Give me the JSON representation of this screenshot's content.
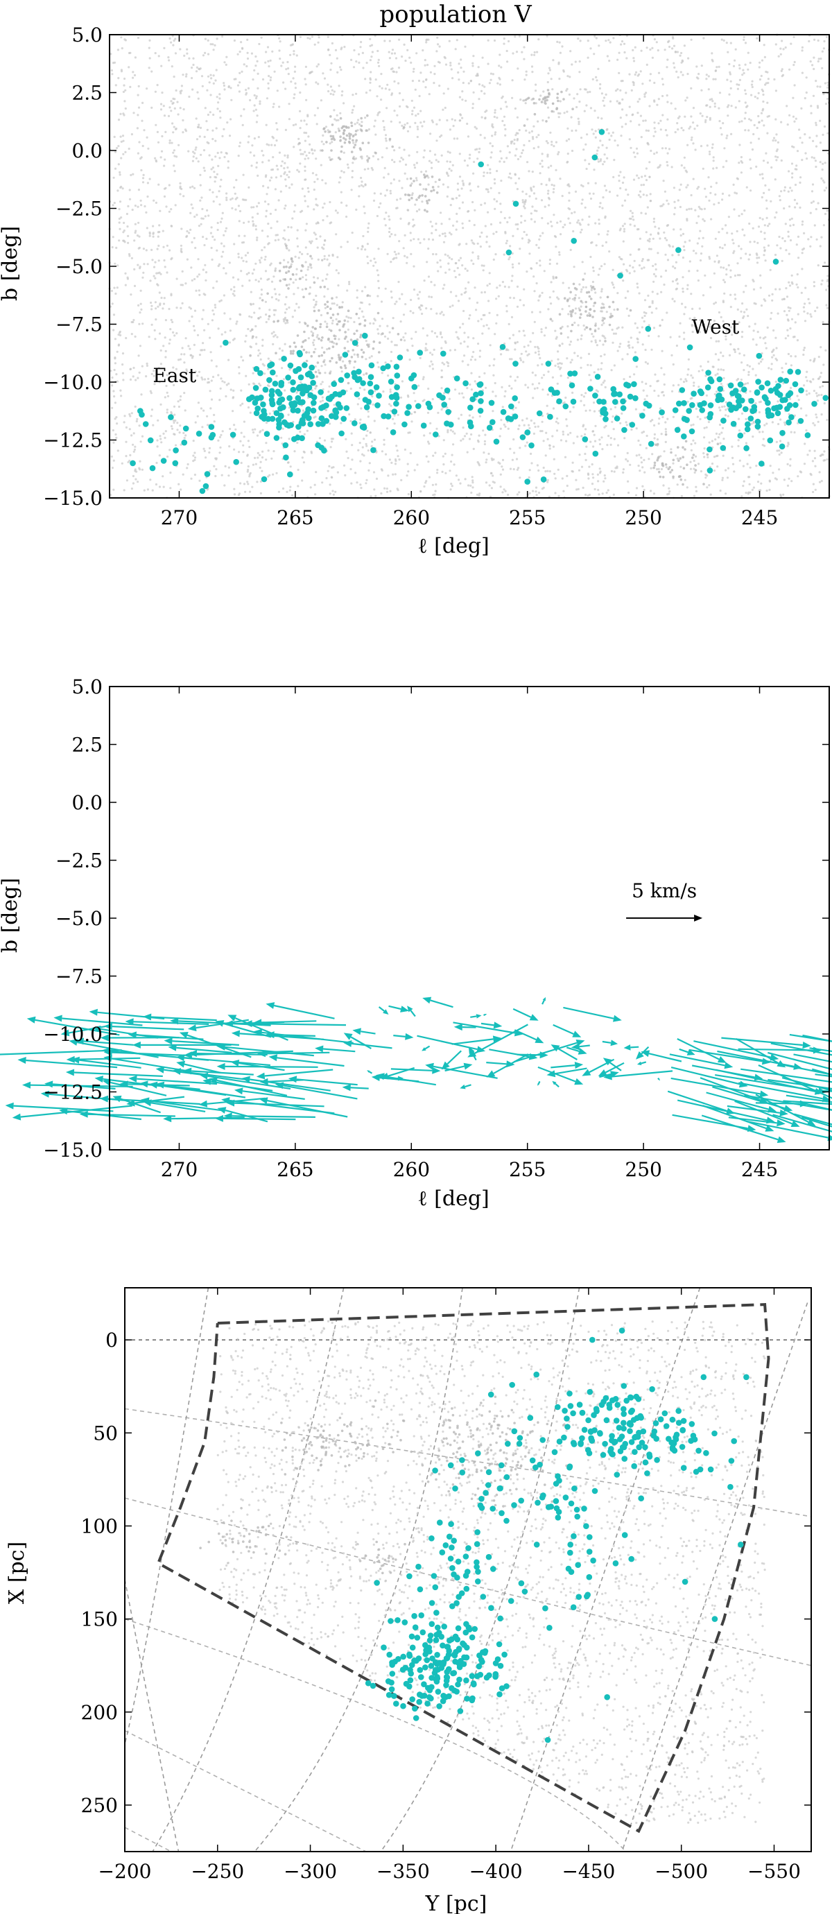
{
  "colors": {
    "member": "#17bebb",
    "background_points": "#c8c8c8",
    "grid": "#9a9a9a",
    "boundary": "#404040",
    "axis": "#000000"
  },
  "chart_data": [
    {
      "type": "scatter",
      "title": "population V",
      "xlabel": "ℓ [deg]",
      "ylabel": "b [deg]",
      "xlim": [
        273,
        242
      ],
      "ylim": [
        -15,
        5
      ],
      "xticks": [
        270,
        265,
        260,
        255,
        250,
        245
      ],
      "yticks": [
        5.0,
        2.5,
        0.0,
        -2.5,
        -5.0,
        -7.5,
        -10.0,
        -12.5,
        -15.0
      ],
      "xtick_labels": [
        "270",
        "265",
        "260",
        "255",
        "250",
        "245"
      ],
      "ytick_labels": [
        "5.0",
        "2.5",
        "0.0",
        "−2.5",
        "−5.0",
        "−7.5",
        "−10.0",
        "−12.5",
        "−15.0"
      ],
      "annotations": [
        {
          "text": "East",
          "x": 270.2,
          "y": -10.0
        },
        {
          "text": "West",
          "x": 246.9,
          "y": -7.9
        }
      ],
      "background_clumps": [
        {
          "l": 262.8,
          "b": 0.6,
          "spread_l": 0.9,
          "spread_b": 0.5,
          "n": 70
        },
        {
          "l": 263.5,
          "b": -8.2,
          "spread_l": 1.4,
          "spread_b": 0.9,
          "n": 140
        },
        {
          "l": 252.3,
          "b": -6.9,
          "spread_l": 0.8,
          "spread_b": 0.5,
          "n": 60
        },
        {
          "l": 254.3,
          "b": 2.1,
          "spread_l": 0.5,
          "spread_b": 0.3,
          "n": 30
        },
        {
          "l": 248.6,
          "b": -13.5,
          "spread_l": 0.6,
          "spread_b": 0.5,
          "n": 45
        },
        {
          "l": 259.5,
          "b": -1.9,
          "spread_l": 0.5,
          "spread_b": 0.4,
          "n": 30
        },
        {
          "l": 265.2,
          "b": -5.3,
          "spread_l": 0.5,
          "spread_b": 0.4,
          "n": 25
        }
      ],
      "background_uniform_count": 5200,
      "member_groups": [
        {
          "name": "",
          "l": 265.0,
          "b": -10.9,
          "spread_l": 1.1,
          "spread_b": 0.9,
          "n": 130
        },
        {
          "l": 261.0,
          "b": -10.6,
          "spread_l": 1.6,
          "spread_b": 0.9,
          "n": 50
        },
        {
          "l": 256.5,
          "b": -11.0,
          "spread_l": 1.8,
          "spread_b": 0.9,
          "n": 45
        },
        {
          "l": 251.5,
          "b": -10.8,
          "spread_l": 1.3,
          "spread_b": 0.6,
          "n": 35
        },
        {
          "l": 245.5,
          "b": -11.0,
          "spread_l": 1.6,
          "spread_b": 0.8,
          "n": 110
        },
        {
          "l": 269.5,
          "b": -12.6,
          "spread_l": 1.3,
          "spread_b": 1.0,
          "n": 22
        }
      ],
      "member_scattered": [
        {
          "l": 257.0,
          "b": -0.6
        },
        {
          "l": 251.8,
          "b": 0.8
        },
        {
          "l": 252.1,
          "b": -0.3
        },
        {
          "l": 255.5,
          "b": -2.3
        },
        {
          "l": 253.0,
          "b": -3.9
        },
        {
          "l": 255.8,
          "b": -4.4
        },
        {
          "l": 251.0,
          "b": -5.4
        },
        {
          "l": 248.5,
          "b": -4.3
        },
        {
          "l": 244.3,
          "b": -4.8
        },
        {
          "l": 249.8,
          "b": -7.7
        },
        {
          "l": 248.0,
          "b": -8.5
        },
        {
          "l": 262.0,
          "b": -8.0
        },
        {
          "l": 268.0,
          "b": -8.3
        },
        {
          "l": 255.0,
          "b": -14.3
        },
        {
          "l": 254.3,
          "b": -14.2
        },
        {
          "l": 269.0,
          "b": -14.7
        },
        {
          "l": 272.0,
          "b": -13.5
        },
        {
          "l": 264.8,
          "b": -8.8
        }
      ]
    },
    {
      "type": "quiver",
      "xlabel": "ℓ [deg]",
      "ylabel": "b [deg]",
      "xlim": [
        273,
        242
      ],
      "ylim": [
        -15,
        5
      ],
      "xticks": [
        270,
        265,
        260,
        255,
        250,
        245
      ],
      "yticks": [
        5.0,
        2.5,
        0.0,
        -2.5,
        -5.0,
        -7.5,
        -10.0,
        -12.5,
        -15.0
      ],
      "xtick_labels": [
        "270",
        "265",
        "260",
        "255",
        "250",
        "245"
      ],
      "ytick_labels": [
        "5.0",
        "2.5",
        "0.0",
        "−2.5",
        "−5.0",
        "−7.5",
        "−10.0",
        "−12.5",
        "−15.0"
      ],
      "key": {
        "label": "5 km/s",
        "x": 250.0,
        "y": -3.8,
        "speed_kms": 5
      },
      "fields": [
        {
          "l_from": 273,
          "l_to": 262,
          "b_from": -13.8,
          "b_to": -9.2,
          "cols": 12,
          "rows": 7,
          "dl_kms": -5.0,
          "db_kms": 0.4,
          "jitter": 1.2
        },
        {
          "l_from": 262,
          "l_to": 253,
          "b_from": -12.5,
          "b_to": -8.5,
          "cols": 9,
          "rows": 5,
          "dl_kms": 0.0,
          "db_kms": 0.0,
          "jitter": 2.2
        },
        {
          "l_from": 253,
          "l_to": 248,
          "b_from": -12.0,
          "b_to": -10.0,
          "cols": 5,
          "rows": 3,
          "dl_kms": -1.5,
          "db_kms": 0.0,
          "jitter": 1.5
        },
        {
          "l_from": 249,
          "l_to": 242.3,
          "b_from": -13.8,
          "b_to": -9.9,
          "cols": 7,
          "rows": 7,
          "dl_kms": 5.0,
          "db_kms": -1.0,
          "jitter": 1.2
        }
      ]
    },
    {
      "type": "scatter",
      "xlabel": "Y [pc]",
      "ylabel": "X [pc]",
      "xlim": [
        -200,
        -570
      ],
      "ylim": [
        275,
        -28
      ],
      "xticks": [
        -200,
        -250,
        -300,
        -350,
        -400,
        -450,
        -500,
        -550
      ],
      "yticks": [
        0,
        50,
        100,
        150,
        200,
        250
      ],
      "xtick_labels": [
        "−200",
        "−250",
        "−300",
        "−350",
        "−400",
        "−450",
        "−500",
        "−550"
      ],
      "ytick_labels": [
        "0",
        "50",
        "100",
        "150",
        "200",
        "250"
      ],
      "boundary": [
        {
          "Y": -250,
          "X": -9
        },
        {
          "Y": -545,
          "X": -19
        },
        {
          "Y": -547,
          "X": 10
        },
        {
          "Y": -539,
          "X": 90
        },
        {
          "Y": -523,
          "X": 150
        },
        {
          "Y": -502,
          "X": 210
        },
        {
          "Y": -477,
          "X": 264
        },
        {
          "Y": -218,
          "X": 120
        },
        {
          "Y": -230,
          "X": 90
        },
        {
          "Y": -243,
          "X": 55
        },
        {
          "Y": -248,
          "X": 20
        },
        {
          "Y": -250,
          "X": -9
        }
      ],
      "grid_radial": [
        [
          {
            "Y": -175,
            "X": 0
          },
          {
            "Y": -210,
            "X": 180
          },
          {
            "Y": -230,
            "X": 280
          }
        ],
        [
          {
            "Y": -245,
            "X": -28
          },
          {
            "Y": -210,
            "X": 170
          },
          {
            "Y": -195,
            "X": 230
          }
        ],
        [
          {
            "Y": -318,
            "X": -28
          },
          {
            "Y": -270,
            "X": 150
          },
          {
            "Y": -215,
            "X": 275
          }
        ],
        [
          {
            "Y": -382,
            "X": -28
          },
          {
            "Y": -340,
            "X": 150
          },
          {
            "Y": -270,
            "X": 275
          }
        ],
        [
          {
            "Y": -445,
            "X": -28
          },
          {
            "Y": -400,
            "X": 150
          },
          {
            "Y": -338,
            "X": 275
          }
        ],
        [
          {
            "Y": -510,
            "X": -28
          },
          {
            "Y": -450,
            "X": 150
          },
          {
            "Y": -408,
            "X": 275
          }
        ],
        [
          {
            "Y": -568,
            "X": -20
          },
          {
            "Y": -520,
            "X": 120
          },
          {
            "Y": -468,
            "X": 275
          }
        ]
      ],
      "grid_tangential": [
        [
          {
            "Y": -200,
            "X": 37
          },
          {
            "Y": -400,
            "X": 67
          },
          {
            "Y": -570,
            "X": 95
          }
        ],
        [
          {
            "Y": -200,
            "X": 85
          },
          {
            "Y": -400,
            "X": 135
          },
          {
            "Y": -570,
            "X": 175
          }
        ],
        [
          {
            "Y": -200,
            "X": 150
          },
          {
            "Y": -380,
            "X": 218
          },
          {
            "Y": -470,
            "X": 275
          }
        ],
        [
          {
            "Y": -200,
            "X": 210
          },
          {
            "Y": -300,
            "X": 260
          },
          {
            "Y": -330,
            "X": 275
          }
        ],
        [
          {
            "Y": -200,
            "X": 262
          },
          {
            "Y": -225,
            "X": 275
          }
        ]
      ],
      "zero_line_X": 0,
      "background_clumps": [
        {
          "Y": -315,
          "X": 55,
          "spread_Y": 20,
          "spread_X": 8,
          "n": 90
        },
        {
          "Y": -395,
          "X": 48,
          "spread_Y": 15,
          "spread_X": 7,
          "n": 70
        },
        {
          "Y": -395,
          "X": 70,
          "spread_Y": 18,
          "spread_X": 9,
          "n": 70
        },
        {
          "Y": -265,
          "X": 108,
          "spread_Y": 12,
          "spread_X": 6,
          "n": 35
        },
        {
          "Y": -340,
          "X": 118,
          "spread_Y": 8,
          "spread_X": 5,
          "n": 20
        }
      ],
      "background_uniform_count": 3500,
      "member_groups": [
        {
          "Y": -372,
          "X": 175,
          "spread_Y": 16,
          "spread_X": 12,
          "n": 170
        },
        {
          "Y": -462,
          "X": 48,
          "spread_Y": 15,
          "spread_X": 11,
          "n": 90
        },
        {
          "Y": -498,
          "X": 58,
          "spread_Y": 11,
          "spread_X": 9,
          "n": 40
        },
        {
          "Y": -420,
          "X": 90,
          "spread_Y": 30,
          "spread_X": 35,
          "n": 100
        },
        {
          "Y": -380,
          "X": 135,
          "spread_Y": 12,
          "spread_X": 15,
          "n": 30
        }
      ],
      "member_scattered": [
        {
          "Y": -452,
          "X": 0
        },
        {
          "Y": -468,
          "X": -5
        },
        {
          "Y": -535,
          "X": 20
        },
        {
          "Y": -512,
          "X": 20
        },
        {
          "Y": -518,
          "X": 150
        },
        {
          "Y": -460,
          "X": 192
        },
        {
          "Y": -428,
          "X": 215
        },
        {
          "Y": -502,
          "X": 130
        },
        {
          "Y": -532,
          "X": 110
        },
        {
          "Y": -527,
          "X": 65
        }
      ]
    }
  ]
}
